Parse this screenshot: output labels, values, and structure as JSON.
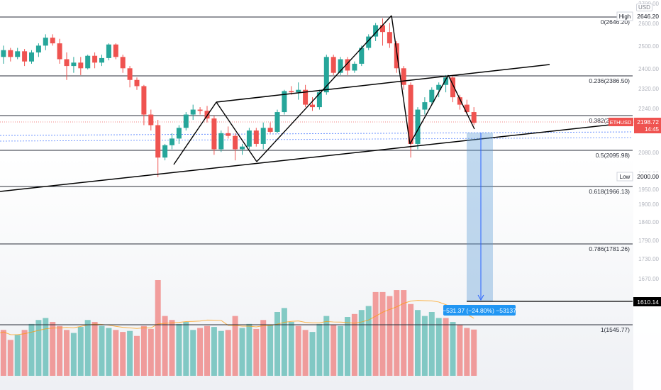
{
  "chart_data": {
    "type": "candlestick",
    "symbol": "ETHUSD",
    "last_price": "2198.72",
    "countdown": "14:45",
    "currency_label": "USD",
    "high": {
      "label": "High",
      "value": "2646.20"
    },
    "low": {
      "label": "Low",
      "value": "2000.00"
    },
    "fib_levels": [
      {
        "ratio": "0",
        "label": "0(2646.20)",
        "price": 2646.2
      },
      {
        "ratio": "0.236",
        "label": "0.236(2386.50)",
        "price": 2386.5
      },
      {
        "ratio": "0.382",
        "label": "0.382(2225.84)",
        "price": 2225.84
      },
      {
        "ratio": "0.5",
        "label": "0.5(2095.98)",
        "price": 2095.98
      },
      {
        "ratio": "0.618",
        "label": "0.618(1966.13)",
        "price": 1966.13
      },
      {
        "ratio": "0.786",
        "label": "0.786(1781.26)",
        "price": 1781.26
      },
      {
        "ratio": "1",
        "label": "1(1545.77)",
        "price": 1545.77
      }
    ],
    "target": {
      "price": 1610.14,
      "label": "1610.14"
    },
    "measure_label": "−531.37 (−24.80%) −53137",
    "y_ticks": [
      "2700.00",
      "2600.00",
      "2500.00",
      "2400.00",
      "2320.00",
      "2240.00",
      "2160.00",
      "2080.00",
      "2000.00",
      "1950.00",
      "1900.00",
      "1840.00",
      "1790.00",
      "1730.00",
      "1670.00"
    ],
    "candles": [
      [
        2440,
        2500,
        2360,
        2470
      ],
      [
        2470,
        2520,
        2440,
        2500
      ],
      [
        2500,
        2510,
        2450,
        2470
      ],
      [
        2470,
        2510,
        2460,
        2495
      ],
      [
        2495,
        2505,
        2430,
        2450
      ],
      [
        2450,
        2500,
        2440,
        2490
      ],
      [
        2490,
        2530,
        2470,
        2520
      ],
      [
        2520,
        2570,
        2500,
        2555
      ],
      [
        2555,
        2570,
        2520,
        2530
      ],
      [
        2530,
        2550,
        2440,
        2460
      ],
      [
        2460,
        2490,
        2370,
        2430
      ],
      [
        2430,
        2470,
        2400,
        2445
      ],
      [
        2445,
        2470,
        2390,
        2420
      ],
      [
        2420,
        2480,
        2415,
        2475
      ],
      [
        2475,
        2490,
        2420,
        2445
      ],
      [
        2445,
        2480,
        2430,
        2465
      ],
      [
        2465,
        2530,
        2455,
        2525
      ],
      [
        2525,
        2530,
        2460,
        2470
      ],
      [
        2470,
        2480,
        2400,
        2420
      ],
      [
        2420,
        2430,
        2340,
        2370
      ],
      [
        2370,
        2380,
        2330,
        2345
      ],
      [
        2345,
        2350,
        2190,
        2230
      ],
      [
        2230,
        2250,
        2170,
        2190
      ],
      [
        2190,
        2210,
        2000,
        2070
      ],
      [
        2070,
        2120,
        2060,
        2115
      ],
      [
        2115,
        2160,
        2100,
        2140
      ],
      [
        2140,
        2190,
        2120,
        2180
      ],
      [
        2180,
        2240,
        2170,
        2230
      ],
      [
        2230,
        2270,
        2210,
        2250
      ],
      [
        2250,
        2260,
        2230,
        2245
      ],
      [
        2245,
        2265,
        2200,
        2215
      ],
      [
        2215,
        2225,
        2080,
        2100
      ],
      [
        2100,
        2170,
        2090,
        2160
      ],
      [
        2160,
        2185,
        2140,
        2150
      ],
      [
        2150,
        2160,
        2060,
        2100
      ],
      [
        2100,
        2120,
        2080,
        2110
      ],
      [
        2110,
        2180,
        2100,
        2170
      ],
      [
        2170,
        2180,
        2110,
        2120
      ],
      [
        2120,
        2200,
        2100,
        2180
      ],
      [
        2180,
        2200,
        2160,
        2165
      ],
      [
        2165,
        2250,
        2160,
        2240
      ],
      [
        2240,
        2330,
        2230,
        2325
      ],
      [
        2325,
        2345,
        2310,
        2320
      ],
      [
        2320,
        2360,
        2290,
        2330
      ],
      [
        2330,
        2350,
        2260,
        2270
      ],
      [
        2270,
        2300,
        2245,
        2260
      ],
      [
        2260,
        2330,
        2250,
        2320
      ],
      [
        2320,
        2480,
        2310,
        2470
      ],
      [
        2470,
        2480,
        2390,
        2400
      ],
      [
        2400,
        2470,
        2390,
        2460
      ],
      [
        2460,
        2470,
        2390,
        2410
      ],
      [
        2410,
        2450,
        2400,
        2440
      ],
      [
        2440,
        2520,
        2430,
        2510
      ],
      [
        2510,
        2570,
        2500,
        2560
      ],
      [
        2560,
        2620,
        2540,
        2610
      ],
      [
        2610,
        2640,
        2520,
        2580
      ],
      [
        2580,
        2620,
        2510,
        2530
      ],
      [
        2530,
        2540,
        2400,
        2420
      ],
      [
        2420,
        2430,
        2330,
        2350
      ],
      [
        2350,
        2360,
        2070,
        2120
      ],
      [
        2120,
        2260,
        2100,
        2250
      ],
      [
        2250,
        2300,
        2230,
        2280
      ],
      [
        2280,
        2340,
        2270,
        2330
      ],
      [
        2330,
        2360,
        2300,
        2350
      ],
      [
        2350,
        2390,
        2320,
        2380
      ],
      [
        2380,
        2390,
        2280,
        2300
      ],
      [
        2300,
        2310,
        2250,
        2270
      ],
      [
        2270,
        2290,
        2230,
        2240
      ],
      [
        2240,
        2260,
        2190,
        2198.72
      ]
    ],
    "volumes": [
      [
        210,
        "up"
      ],
      [
        230,
        "down"
      ],
      [
        180,
        "down"
      ],
      [
        205,
        "up"
      ],
      [
        230,
        "down"
      ],
      [
        260,
        "up"
      ],
      [
        280,
        "up"
      ],
      [
        290,
        "up"
      ],
      [
        270,
        "down"
      ],
      [
        250,
        "down"
      ],
      [
        230,
        "down"
      ],
      [
        215,
        "up"
      ],
      [
        245,
        "up"
      ],
      [
        280,
        "up"
      ],
      [
        270,
        "down"
      ],
      [
        250,
        "up"
      ],
      [
        240,
        "up"
      ],
      [
        230,
        "down"
      ],
      [
        220,
        "down"
      ],
      [
        225,
        "up"
      ],
      [
        200,
        "down"
      ],
      [
        250,
        "down"
      ],
      [
        235,
        "down"
      ],
      [
        480,
        "down"
      ],
      [
        300,
        "down"
      ],
      [
        280,
        "down"
      ],
      [
        260,
        "up"
      ],
      [
        270,
        "up"
      ],
      [
        230,
        "up"
      ],
      [
        240,
        "down"
      ],
      [
        250,
        "down"
      ],
      [
        245,
        "up"
      ],
      [
        225,
        "up"
      ],
      [
        230,
        "down"
      ],
      [
        300,
        "down"
      ],
      [
        240,
        "up"
      ],
      [
        260,
        "up"
      ],
      [
        235,
        "down"
      ],
      [
        280,
        "down"
      ],
      [
        255,
        "up"
      ],
      [
        320,
        "up"
      ],
      [
        340,
        "up"
      ],
      [
        270,
        "up"
      ],
      [
        250,
        "down"
      ],
      [
        230,
        "down"
      ],
      [
        220,
        "up"
      ],
      [
        260,
        "up"
      ],
      [
        300,
        "up"
      ],
      [
        255,
        "down"
      ],
      [
        250,
        "up"
      ],
      [
        295,
        "up"
      ],
      [
        310,
        "down"
      ],
      [
        330,
        "up"
      ],
      [
        350,
        "up"
      ],
      [
        420,
        "down"
      ],
      [
        420,
        "down"
      ],
      [
        400,
        "down"
      ],
      [
        430,
        "down"
      ],
      [
        430,
        "down"
      ],
      [
        360,
        "down"
      ],
      [
        330,
        "up"
      ],
      [
        300,
        "up"
      ],
      [
        320,
        "up"
      ],
      [
        290,
        "up"
      ],
      [
        290,
        "down"
      ],
      [
        270,
        "up"
      ],
      [
        255,
        "down"
      ],
      [
        240,
        "down"
      ],
      [
        232,
        "down"
      ]
    ]
  },
  "colors": {
    "up": "#26a69a",
    "down": "#ef5350",
    "accent_blue": "#2962ff",
    "measure_fill": "#5b9bd5"
  }
}
